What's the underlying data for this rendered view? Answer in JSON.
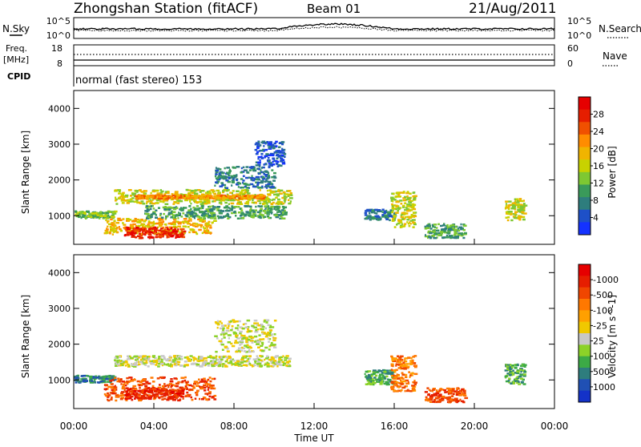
{
  "header": {
    "title": "Zhongshan Station (fitACF)",
    "beam": "Beam 01",
    "date": "21/Aug/2011"
  },
  "noise_panel": {
    "left_label": "N.Sky",
    "right_label": "N.Search",
    "left_ticks": [
      "10^5",
      "10^0"
    ],
    "right_ticks": [
      "10^5",
      "10^0"
    ]
  },
  "freq_panel": {
    "left_label_line1": "Freq.",
    "left_label_line2": "[MHz]",
    "right_label": "Nave",
    "left_ticks": [
      "18",
      "8"
    ],
    "right_ticks": [
      "60",
      "0"
    ]
  },
  "cpid": {
    "label": "CPID",
    "text": "normal (fast stereo) 153"
  },
  "chart_data": [
    {
      "type": "heatmap",
      "name": "power",
      "ylabel": "Slant Range [km]",
      "yticks": [
        1000,
        2000,
        3000,
        4000
      ],
      "ylim": [
        200,
        4500
      ],
      "xlim": [
        0,
        24
      ],
      "colorbar": {
        "label": "Power [dB]",
        "ticks": [
          "4",
          "8",
          "12",
          "16",
          "20",
          "24",
          "28"
        ],
        "colors": [
          "#1432ff",
          "#1e50c8",
          "#2e7d7d",
          "#3a9a5a",
          "#7ec832",
          "#c8d200",
          "#f0b400",
          "#ff8c00",
          "#f05000",
          "#e61e00",
          "#e60000"
        ]
      },
      "regions": [
        {
          "t0": 0.0,
          "t1": 2.0,
          "r0": 950,
          "r1": 1150,
          "level": 4
        },
        {
          "t0": 1.5,
          "t1": 7.0,
          "r0": 500,
          "r1": 950,
          "level": 6
        },
        {
          "t0": 2.5,
          "t1": 5.5,
          "r0": 400,
          "r1": 700,
          "level": 9
        },
        {
          "t0": 2.0,
          "t1": 10.8,
          "r0": 1350,
          "r1": 1750,
          "level": 5
        },
        {
          "t0": 3.0,
          "t1": 9.5,
          "r0": 1500,
          "r1": 1600,
          "level": 7
        },
        {
          "t0": 3.5,
          "t1": 10.5,
          "r0": 950,
          "r1": 1300,
          "level": 3
        },
        {
          "t0": 7.0,
          "t1": 10.0,
          "r0": 1800,
          "r1": 2400,
          "level": 2
        },
        {
          "t0": 9.0,
          "t1": 10.5,
          "r0": 2400,
          "r1": 3100,
          "level": 1
        },
        {
          "t0": 14.5,
          "t1": 16.0,
          "r0": 900,
          "r1": 1200,
          "level": 2
        },
        {
          "t0": 15.8,
          "t1": 17.0,
          "r0": 700,
          "r1": 1700,
          "level": 5
        },
        {
          "t0": 17.5,
          "t1": 19.5,
          "r0": 400,
          "r1": 800,
          "level": 3
        },
        {
          "t0": 21.5,
          "t1": 22.5,
          "r0": 900,
          "r1": 1500,
          "level": 5
        }
      ]
    },
    {
      "type": "heatmap",
      "name": "velocity",
      "ylabel": "Slant Range [km]",
      "xlabel": "Time UT",
      "xticks": [
        "00:00",
        "04:00",
        "08:00",
        "12:00",
        "16:00",
        "20:00",
        "00:00"
      ],
      "yticks": [
        1000,
        2000,
        3000,
        4000
      ],
      "ylim": [
        200,
        4500
      ],
      "xlim": [
        0,
        24
      ],
      "colorbar": {
        "label": "Velocity [m s^-1]",
        "ticks": [
          "1000",
          "500",
          "100",
          "25",
          "-25",
          "-100",
          "-500",
          "-1000"
        ],
        "colors": [
          "#1432c8",
          "#2050b4",
          "#2e7d7d",
          "#3caa46",
          "#8cd228",
          "#c8c8c8",
          "#f0c800",
          "#ffa000",
          "#ff7800",
          "#f04600",
          "#e61e00",
          "#e60000"
        ]
      },
      "regions": [
        {
          "t0": 0.0,
          "t1": 2.0,
          "r0": 950,
          "r1": 1150,
          "level": 2
        },
        {
          "t0": 1.5,
          "t1": 7.0,
          "r0": 450,
          "r1": 1100,
          "level": 9
        },
        {
          "t0": 2.5,
          "t1": 5.5,
          "r0": 500,
          "r1": 800,
          "level": 10
        },
        {
          "t0": 2.0,
          "t1": 10.8,
          "r0": 1400,
          "r1": 1700,
          "level": 5
        },
        {
          "t0": 7.0,
          "t1": 10.0,
          "r0": 1800,
          "r1": 2700,
          "level": 5
        },
        {
          "t0": 14.5,
          "t1": 16.0,
          "r0": 900,
          "r1": 1300,
          "level": 3
        },
        {
          "t0": 15.8,
          "t1": 17.0,
          "r0": 700,
          "r1": 1700,
          "level": 8
        },
        {
          "t0": 17.5,
          "t1": 19.5,
          "r0": 400,
          "r1": 800,
          "level": 9
        },
        {
          "t0": 21.5,
          "t1": 22.5,
          "r0": 900,
          "r1": 1500,
          "level": 3
        }
      ]
    }
  ]
}
